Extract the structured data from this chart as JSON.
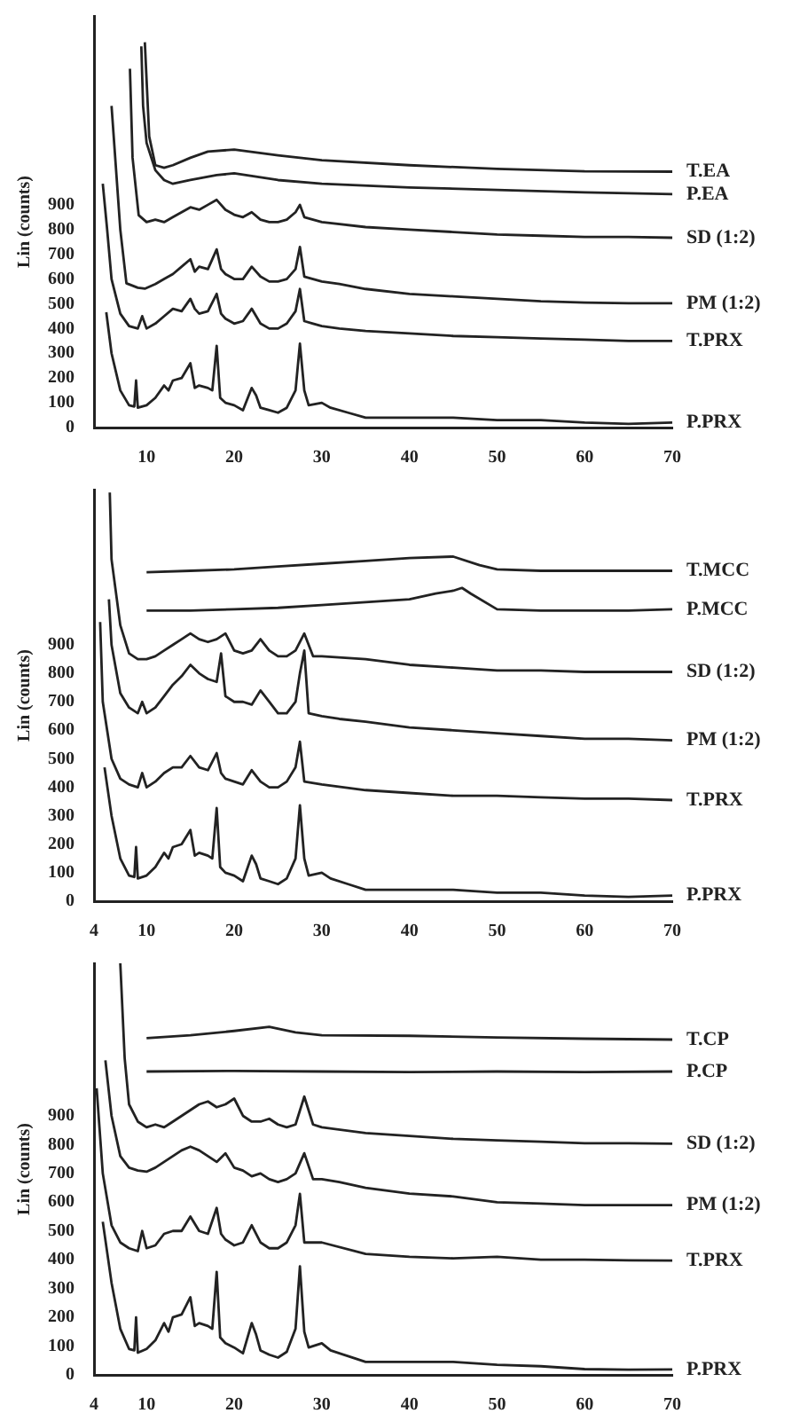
{
  "chart_data": [
    {
      "type": "line",
      "ylabel": "Lin (counts)",
      "xlim": [
        4,
        70
      ],
      "xticks": [
        10,
        20,
        30,
        40,
        50,
        60,
        70
      ],
      "ylim": [
        0,
        1663
      ],
      "yticks": [
        0,
        100,
        200,
        300,
        400,
        500,
        600,
        700,
        800,
        900
      ],
      "grid": false,
      "legend": false,
      "marker": "none",
      "line_style": "solid",
      "series": [
        {
          "name": "P.PRX",
          "color": "#222222",
          "x": [
            5.4,
            6,
            7,
            8,
            8.6,
            8.8,
            9,
            10,
            11,
            12,
            12.5,
            13,
            14,
            15,
            15.5,
            16,
            17,
            17.5,
            18,
            18.4,
            19,
            20,
            21,
            22,
            22.5,
            23,
            24,
            25,
            26,
            27,
            27.5,
            28,
            28.5,
            30,
            31,
            33,
            35,
            40,
            45,
            50,
            55,
            60,
            65,
            70
          ],
          "values": [
            466,
            300,
            150,
            90,
            85,
            190,
            80,
            90,
            120,
            170,
            150,
            190,
            200,
            260,
            160,
            170,
            160,
            150,
            330,
            120,
            100,
            90,
            70,
            160,
            130,
            80,
            70,
            60,
            80,
            150,
            339,
            150,
            90,
            100,
            80,
            60,
            40,
            40,
            40,
            30,
            30,
            20,
            15,
            20
          ]
        },
        {
          "name": "T.PRX",
          "color": "#222222",
          "x": [
            5,
            5.5,
            6,
            7,
            8,
            9,
            9.5,
            10,
            11,
            12,
            13,
            14,
            15,
            15.5,
            16,
            17,
            18,
            18.5,
            19,
            20,
            21,
            22,
            23,
            24,
            25,
            26,
            27,
            27.5,
            28,
            29,
            30,
            32,
            35,
            40,
            45,
            50,
            55,
            60,
            65,
            70
          ],
          "values": [
            985,
            800,
            600,
            460,
            410,
            400,
            450,
            400,
            420,
            450,
            480,
            470,
            520,
            480,
            460,
            470,
            540,
            460,
            440,
            420,
            430,
            480,
            420,
            400,
            400,
            420,
            470,
            560,
            430,
            420,
            410,
            400,
            390,
            380,
            370,
            365,
            360,
            355,
            350,
            350
          ]
        },
        {
          "name": "PM (1:2)",
          "color": "#222222",
          "x": [
            6,
            7,
            7.7,
            9,
            9.8,
            11,
            12,
            13,
            14,
            15,
            15.5,
            16,
            17,
            18,
            18.5,
            19,
            20,
            21,
            22,
            23,
            24,
            25,
            26,
            27,
            27.5,
            28,
            29,
            30,
            32,
            35,
            40,
            45,
            50,
            55,
            60,
            65,
            70
          ],
          "values": [
            1300,
            800,
            583,
            565,
            561,
            580,
            600,
            620,
            650,
            680,
            630,
            650,
            640,
            720,
            640,
            620,
            600,
            600,
            650,
            610,
            590,
            590,
            600,
            640,
            730,
            610,
            600,
            590,
            580,
            560,
            540,
            530,
            520,
            510,
            505,
            502,
            502
          ]
        },
        {
          "name": "SD (1:2)",
          "color": "#222222",
          "x": [
            8.1,
            8.4,
            9.1,
            10,
            11,
            12,
            13,
            14,
            15,
            16,
            17,
            18,
            19,
            20,
            21,
            22,
            23,
            24,
            25,
            26,
            27,
            27.5,
            28,
            29,
            30,
            35,
            40,
            45,
            50,
            55,
            60,
            65,
            70
          ],
          "values": [
            1450,
            1090,
            858,
            830,
            840,
            830,
            850,
            870,
            890,
            880,
            900,
            920,
            880,
            860,
            850,
            870,
            840,
            830,
            830,
            840,
            870,
            900,
            850,
            840,
            830,
            810,
            800,
            790,
            780,
            775,
            770,
            770,
            767
          ]
        },
        {
          "name": "P.EA",
          "color": "#222222",
          "x": [
            9.4,
            9.6,
            10,
            11,
            12,
            13,
            15,
            18,
            20,
            25,
            30,
            40,
            50,
            60,
            70
          ],
          "values": [
            1540,
            1300,
            1150,
            1040,
            1000,
            985,
            1000,
            1020,
            1027,
            1000,
            985,
            970,
            960,
            950,
            943
          ]
        },
        {
          "name": "T.EA",
          "color": "#222222",
          "x": [
            9.8,
            10.3,
            11,
            12,
            13,
            15,
            17,
            20,
            25,
            30,
            40,
            50,
            60,
            70
          ],
          "values": [
            1557,
            1176,
            1060,
            1050,
            1060,
            1090,
            1115,
            1123,
            1100,
            1080,
            1060,
            1045,
            1035,
            1034
          ]
        }
      ]
    },
    {
      "type": "line",
      "ylabel": "Lin (counts)",
      "xlim": [
        4,
        70
      ],
      "xticks": [
        4,
        10,
        20,
        30,
        40,
        50,
        60,
        70
      ],
      "ylim": [
        0,
        1445
      ],
      "yticks": [
        0,
        100,
        200,
        300,
        400,
        500,
        600,
        700,
        800,
        900
      ],
      "grid": false,
      "legend": false,
      "marker": "none",
      "line_style": "solid",
      "series": [
        {
          "name": "P.PRX",
          "color": "#222222",
          "x": [
            5.2,
            6,
            7,
            8,
            8.6,
            8.8,
            9,
            10,
            11,
            12,
            12.5,
            13,
            14,
            15,
            15.5,
            16,
            17,
            17.5,
            18,
            18.4,
            19,
            20,
            21,
            22,
            22.5,
            23,
            24,
            25,
            26,
            27,
            27.5,
            28,
            28.5,
            30,
            31,
            33,
            35,
            40,
            45,
            50,
            55,
            60,
            65,
            70
          ],
          "values": [
            470,
            300,
            150,
            90,
            85,
            190,
            80,
            90,
            120,
            170,
            150,
            190,
            200,
            250,
            160,
            170,
            160,
            150,
            327,
            120,
            100,
            90,
            70,
            160,
            130,
            80,
            70,
            60,
            80,
            150,
            337,
            150,
            90,
            100,
            80,
            60,
            40,
            40,
            40,
            30,
            30,
            20,
            15,
            20
          ]
        },
        {
          "name": "T.PRX",
          "color": "#222222",
          "x": [
            4.7,
            5,
            6,
            7,
            8,
            9,
            9.5,
            10,
            11,
            12,
            13,
            14,
            15,
            16,
            17,
            18,
            18.5,
            19,
            20,
            21,
            22,
            23,
            24,
            25,
            26,
            27,
            27.5,
            28,
            30,
            35,
            40,
            45,
            50,
            55,
            60,
            65,
            70
          ],
          "values": [
            980,
            700,
            500,
            430,
            410,
            400,
            450,
            400,
            420,
            450,
            470,
            470,
            510,
            470,
            460,
            520,
            450,
            430,
            420,
            410,
            460,
            420,
            400,
            400,
            420,
            470,
            560,
            420,
            410,
            390,
            380,
            370,
            370,
            365,
            360,
            360,
            355
          ]
        },
        {
          "name": "PM (1:2)",
          "color": "#222222",
          "x": [
            5.7,
            6,
            7,
            8,
            9,
            9.5,
            10,
            11,
            12,
            13,
            14,
            15,
            16,
            17,
            18,
            18.5,
            19,
            20,
            21,
            22,
            23,
            24,
            25,
            26,
            27,
            27.5,
            28,
            28.5,
            30,
            32,
            35,
            40,
            45,
            50,
            55,
            60,
            65,
            70
          ],
          "values": [
            1060,
            900,
            730,
            680,
            660,
            700,
            660,
            680,
            720,
            760,
            790,
            830,
            800,
            780,
            770,
            870,
            720,
            700,
            700,
            690,
            740,
            700,
            660,
            660,
            700,
            800,
            880,
            660,
            650,
            640,
            630,
            610,
            600,
            590,
            580,
            570,
            570,
            565
          ]
        },
        {
          "name": "SD (1:2)",
          "color": "#222222",
          "x": [
            5.8,
            6,
            7,
            8,
            9,
            10,
            11,
            12,
            13,
            14,
            15,
            16,
            17,
            18,
            19,
            20,
            21,
            22,
            23,
            24,
            25,
            26,
            27,
            28,
            29,
            30,
            35,
            40,
            45,
            50,
            55,
            60,
            65,
            70
          ],
          "values": [
            1435,
            1200,
            969,
            870,
            850,
            850,
            860,
            880,
            900,
            920,
            940,
            920,
            910,
            920,
            940,
            880,
            870,
            880,
            920,
            880,
            860,
            860,
            880,
            940,
            860,
            860,
            850,
            830,
            820,
            810,
            810,
            805,
            805,
            805
          ]
        },
        {
          "name": "P.MCC",
          "color": "#222222",
          "x": [
            10,
            15,
            20,
            25,
            30,
            35,
            40,
            43,
            45,
            46,
            47,
            50,
            55,
            60,
            65,
            70
          ],
          "values": [
            1020,
            1020,
            1025,
            1030,
            1040,
            1050,
            1060,
            1080,
            1090,
            1100,
            1080,
            1025,
            1020,
            1020,
            1020,
            1025
          ]
        },
        {
          "name": "T.MCC",
          "color": "#222222",
          "x": [
            10,
            15,
            20,
            25,
            30,
            35,
            40,
            45,
            48,
            50,
            55,
            60,
            65,
            70
          ],
          "values": [
            1155,
            1160,
            1165,
            1175,
            1185,
            1195,
            1205,
            1210,
            1180,
            1165,
            1160,
            1160,
            1160,
            1160
          ]
        }
      ]
    },
    {
      "type": "line",
      "ylabel": "Lin (counts)",
      "xlim": [
        4,
        70
      ],
      "xticks": [
        4,
        10,
        20,
        30,
        40,
        50,
        60,
        70
      ],
      "ylim": [
        0,
        1430
      ],
      "yticks": [
        0,
        100,
        200,
        300,
        400,
        500,
        600,
        700,
        800,
        900
      ],
      "grid": false,
      "legend": false,
      "marker": "none",
      "line_style": "solid",
      "series": [
        {
          "name": "P.PRX",
          "color": "#222222",
          "x": [
            5,
            6,
            7,
            8,
            8.6,
            8.8,
            9,
            10,
            11,
            12,
            12.5,
            13,
            14,
            15,
            15.5,
            16,
            17,
            17.5,
            18,
            18.4,
            19,
            20,
            21,
            22,
            22.5,
            23,
            24,
            25,
            26,
            27,
            27.5,
            28,
            28.5,
            30,
            31,
            33,
            35,
            40,
            45,
            50,
            55,
            60,
            65,
            70
          ],
          "values": [
            532,
            320,
            160,
            90,
            85,
            200,
            77,
            90,
            120,
            180,
            150,
            200,
            210,
            270,
            170,
            180,
            170,
            160,
            358,
            130,
            110,
            95,
            75,
            180,
            140,
            85,
            70,
            60,
            80,
            160,
            377,
            150,
            95,
            110,
            85,
            65,
            45,
            45,
            45,
            35,
            30,
            20,
            18,
            19
          ]
        },
        {
          "name": "T.PRX",
          "color": "#222222",
          "x": [
            4.3,
            5,
            6,
            7,
            8,
            9,
            9.5,
            10,
            11,
            12,
            13,
            14,
            15,
            16,
            17,
            18,
            18.5,
            19,
            20,
            21,
            22,
            23,
            24,
            25,
            26,
            27,
            27.5,
            28,
            30,
            35,
            40,
            45,
            50,
            55,
            60,
            65,
            70
          ],
          "values": [
            996,
            700,
            520,
            460,
            440,
            430,
            500,
            440,
            450,
            490,
            500,
            500,
            550,
            500,
            490,
            580,
            490,
            470,
            450,
            460,
            520,
            460,
            440,
            440,
            460,
            520,
            629,
            460,
            460,
            420,
            410,
            405,
            410,
            400,
            400,
            398,
            397
          ]
        },
        {
          "name": "PM (1:2)",
          "color": "#222222",
          "x": [
            5.3,
            6,
            7,
            8,
            9,
            10,
            11,
            12,
            13,
            14,
            15,
            16,
            17,
            18,
            19,
            20,
            21,
            22,
            23,
            24,
            25,
            26,
            27,
            28,
            29,
            30,
            32,
            35,
            40,
            45,
            50,
            55,
            60,
            65,
            70
          ],
          "values": [
            1093,
            900,
            760,
            720,
            710,
            706,
            720,
            740,
            760,
            780,
            793,
            780,
            760,
            740,
            770,
            720,
            710,
            690,
            700,
            680,
            670,
            680,
            700,
            770,
            680,
            680,
            670,
            650,
            630,
            620,
            600,
            595,
            590,
            590,
            590
          ]
        },
        {
          "name": "SD (1:2)",
          "color": "#222222",
          "x": [
            7,
            7.5,
            8,
            9,
            10,
            11,
            12,
            13,
            14,
            15,
            16,
            17,
            18,
            19,
            20,
            21,
            22,
            23,
            24,
            25,
            26,
            27,
            28,
            29,
            30,
            35,
            40,
            45,
            50,
            55,
            60,
            65,
            70
          ],
          "values": [
            1430,
            1100,
            940,
            880,
            860,
            870,
            860,
            880,
            900,
            920,
            940,
            950,
            930,
            940,
            960,
            900,
            880,
            880,
            890,
            870,
            860,
            870,
            967,
            870,
            860,
            840,
            830,
            820,
            815,
            810,
            805,
            805,
            803
          ]
        },
        {
          "name": "P.CP",
          "color": "#222222",
          "x": [
            10,
            20,
            30,
            40,
            50,
            60,
            70
          ],
          "values": [
            1054,
            1056,
            1054,
            1052,
            1054,
            1052,
            1054
          ]
        },
        {
          "name": "T.CP",
          "color": "#222222",
          "x": [
            10,
            15,
            20,
            24,
            27,
            30,
            40,
            50,
            60,
            70
          ],
          "values": [
            1170,
            1180,
            1195,
            1209,
            1190,
            1180,
            1178,
            1172,
            1168,
            1165
          ]
        }
      ]
    }
  ]
}
